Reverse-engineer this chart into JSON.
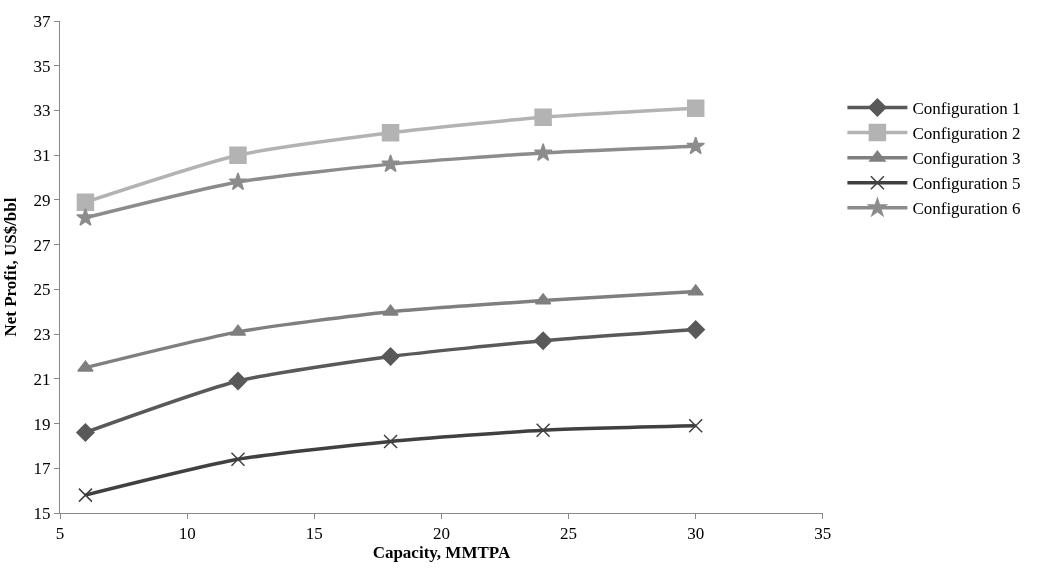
{
  "chart_data": {
    "type": "line",
    "xlabel": "Capacity, MMTPA",
    "ylabel": "Net Profit, US$/bbl",
    "x": [
      6,
      12,
      18,
      24,
      30
    ],
    "series": [
      {
        "name": "Configuration 1",
        "color": "#595959",
        "marker": "diamond",
        "values": [
          18.6,
          20.9,
          22.0,
          22.7,
          23.2
        ]
      },
      {
        "name": "Configuration 2",
        "color": "#b3b3b3",
        "marker": "square",
        "values": [
          28.9,
          31.0,
          32.0,
          32.7,
          33.1
        ]
      },
      {
        "name": "Configuration 3",
        "color": "#7f7f7f",
        "marker": "triangle",
        "values": [
          21.5,
          23.1,
          24.0,
          24.5,
          24.9
        ]
      },
      {
        "name": "Configuration 5",
        "color": "#404040",
        "marker": "cross",
        "values": [
          15.8,
          17.4,
          18.2,
          18.7,
          18.9
        ]
      },
      {
        "name": "Configuration 6",
        "color": "#8c8c8c",
        "marker": "star",
        "values": [
          28.2,
          29.8,
          30.6,
          31.1,
          31.4
        ]
      }
    ],
    "xlim": [
      5,
      35
    ],
    "xticks": [
      5,
      10,
      15,
      20,
      25,
      30,
      35
    ],
    "ylim": [
      15,
      37
    ],
    "yticks": [
      15,
      17,
      19,
      21,
      23,
      25,
      27,
      29,
      31,
      33,
      35,
      37
    ],
    "grid": false,
    "legend": "right",
    "line_style": "solid"
  }
}
